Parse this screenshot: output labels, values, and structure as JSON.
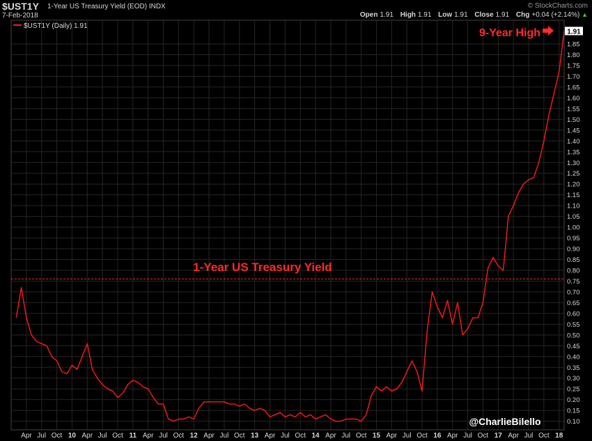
{
  "header": {
    "symbol": "$UST1Y",
    "description": "1-Year US Treasury Yield (EOD)",
    "exchange": "INDX",
    "date": "7-Feb-2018",
    "brand": "© StockCharts.com",
    "open_label": "Open",
    "open": "1.91",
    "high_label": "High",
    "high": "1.91",
    "low_label": "Low",
    "low": "1.91",
    "close_label": "Close",
    "close": "1.91",
    "chg_label": "Chg",
    "chg": "+0.04 (+2.14%)",
    "chg_icon": "up-triangle-icon"
  },
  "legend": {
    "text": "$UST1Y (Daily) 1.91"
  },
  "annotations": {
    "title_text": "1-Year US Treasury Yield",
    "high_text": "9-Year High",
    "high_icon": "right-arrow-icon",
    "credit": "@CharlieBilello",
    "last_value": "1.91"
  },
  "colors": {
    "line": "#ff1a1a",
    "annotation": "#ff2a2a",
    "grid": "#262626",
    "background": "#000000"
  },
  "chart_data": {
    "type": "line",
    "series": [
      {
        "name": "$UST1Y (Daily)",
        "x": [
          "2009-02",
          "2009-03",
          "2009-04",
          "2009-05",
          "2009-06",
          "2009-07",
          "2009-08",
          "2009-09",
          "2009-10",
          "2009-11",
          "2009-12",
          "2010-01",
          "2010-02",
          "2010-03",
          "2010-04",
          "2010-05",
          "2010-06",
          "2010-07",
          "2010-08",
          "2010-09",
          "2010-10",
          "2010-11",
          "2010-12",
          "2011-01",
          "2011-02",
          "2011-03",
          "2011-04",
          "2011-05",
          "2011-06",
          "2011-07",
          "2011-08",
          "2011-09",
          "2011-10",
          "2011-11",
          "2011-12",
          "2012-01",
          "2012-02",
          "2012-03",
          "2012-04",
          "2012-05",
          "2012-06",
          "2012-07",
          "2012-08",
          "2012-09",
          "2012-10",
          "2012-11",
          "2012-12",
          "2013-01",
          "2013-02",
          "2013-03",
          "2013-04",
          "2013-05",
          "2013-06",
          "2013-07",
          "2013-08",
          "2013-09",
          "2013-10",
          "2013-11",
          "2013-12",
          "2014-01",
          "2014-02",
          "2014-03",
          "2014-04",
          "2014-05",
          "2014-06",
          "2014-07",
          "2014-08",
          "2014-09",
          "2014-10",
          "2014-11",
          "2014-12",
          "2015-01",
          "2015-02",
          "2015-03",
          "2015-04",
          "2015-05",
          "2015-06",
          "2015-07",
          "2015-08",
          "2015-09",
          "2015-10",
          "2015-11",
          "2015-12",
          "2016-01",
          "2016-02",
          "2016-03",
          "2016-04",
          "2016-05",
          "2016-06",
          "2016-07",
          "2016-08",
          "2016-09",
          "2016-10",
          "2016-11",
          "2016-12",
          "2017-01",
          "2017-02",
          "2017-03",
          "2017-04",
          "2017-05",
          "2017-06",
          "2017-07",
          "2017-08",
          "2017-09",
          "2017-10",
          "2017-11",
          "2017-12",
          "2018-01",
          "2018-02"
        ],
        "values": [
          0.58,
          0.72,
          0.58,
          0.5,
          0.47,
          0.46,
          0.45,
          0.4,
          0.38,
          0.33,
          0.32,
          0.36,
          0.34,
          0.4,
          0.46,
          0.34,
          0.3,
          0.27,
          0.25,
          0.24,
          0.21,
          0.23,
          0.27,
          0.29,
          0.28,
          0.26,
          0.25,
          0.21,
          0.18,
          0.18,
          0.11,
          0.1,
          0.11,
          0.11,
          0.12,
          0.11,
          0.16,
          0.19,
          0.19,
          0.19,
          0.19,
          0.19,
          0.18,
          0.18,
          0.17,
          0.18,
          0.16,
          0.15,
          0.16,
          0.15,
          0.12,
          0.13,
          0.14,
          0.12,
          0.13,
          0.12,
          0.14,
          0.12,
          0.13,
          0.11,
          0.12,
          0.13,
          0.11,
          0.1,
          0.1,
          0.11,
          0.11,
          0.11,
          0.1,
          0.13,
          0.22,
          0.26,
          0.24,
          0.26,
          0.24,
          0.25,
          0.28,
          0.33,
          0.38,
          0.33,
          0.24,
          0.52,
          0.7,
          0.63,
          0.58,
          0.66,
          0.55,
          0.65,
          0.5,
          0.53,
          0.58,
          0.58,
          0.65,
          0.81,
          0.86,
          0.82,
          0.8,
          1.05,
          1.1,
          1.16,
          1.2,
          1.22,
          1.23,
          1.3,
          1.4,
          1.52,
          1.62,
          1.72,
          1.91
        ]
      }
    ],
    "reference_line": 0.76,
    "xlabel": "",
    "ylabel": "",
    "ylim": [
      0.06,
      1.96
    ],
    "y_ticks": [
      0.1,
      0.15,
      0.2,
      0.25,
      0.3,
      0.35,
      0.4,
      0.45,
      0.5,
      0.55,
      0.6,
      0.65,
      0.7,
      0.75,
      0.8,
      0.85,
      0.9,
      0.95,
      1.0,
      1.05,
      1.1,
      1.15,
      1.2,
      1.25,
      1.3,
      1.35,
      1.4,
      1.45,
      1.5,
      1.55,
      1.6,
      1.65,
      1.7,
      1.75,
      1.8,
      1.85
    ],
    "x_ticks": [
      {
        "label": "Apr",
        "x": "2009-04"
      },
      {
        "label": "Jul",
        "x": "2009-07"
      },
      {
        "label": "Oct",
        "x": "2009-10"
      },
      {
        "label": "10",
        "x": "2010-01"
      },
      {
        "label": "Apr",
        "x": "2010-04"
      },
      {
        "label": "Jul",
        "x": "2010-07"
      },
      {
        "label": "Oct",
        "x": "2010-10"
      },
      {
        "label": "11",
        "x": "2011-01"
      },
      {
        "label": "Apr",
        "x": "2011-04"
      },
      {
        "label": "Jul",
        "x": "2011-07"
      },
      {
        "label": "Oct",
        "x": "2011-10"
      },
      {
        "label": "12",
        "x": "2012-01"
      },
      {
        "label": "Apr",
        "x": "2012-04"
      },
      {
        "label": "Jul",
        "x": "2012-07"
      },
      {
        "label": "Oct",
        "x": "2012-10"
      },
      {
        "label": "13",
        "x": "2013-01"
      },
      {
        "label": "Apr",
        "x": "2013-04"
      },
      {
        "label": "Jul",
        "x": "2013-07"
      },
      {
        "label": "Oct",
        "x": "2013-10"
      },
      {
        "label": "14",
        "x": "2014-01"
      },
      {
        "label": "Apr",
        "x": "2014-04"
      },
      {
        "label": "Jul",
        "x": "2014-07"
      },
      {
        "label": "Oct",
        "x": "2014-10"
      },
      {
        "label": "15",
        "x": "2015-01"
      },
      {
        "label": "Apr",
        "x": "2015-04"
      },
      {
        "label": "Jul",
        "x": "2015-07"
      },
      {
        "label": "Oct",
        "x": "2015-10"
      },
      {
        "label": "16",
        "x": "2016-01"
      },
      {
        "label": "Apr",
        "x": "2016-04"
      },
      {
        "label": "Jul",
        "x": "2016-07"
      },
      {
        "label": "Oct",
        "x": "2016-10"
      },
      {
        "label": "17",
        "x": "2017-01"
      },
      {
        "label": "Apr",
        "x": "2017-04"
      },
      {
        "label": "Jul",
        "x": "2017-07"
      },
      {
        "label": "Oct",
        "x": "2017-10"
      },
      {
        "label": "18",
        "x": "2018-01"
      }
    ],
    "bold_x_ticks": [
      "10",
      "11",
      "12",
      "13",
      "14",
      "15",
      "16",
      "17",
      "18"
    ],
    "grid": true,
    "legend": "top-left"
  }
}
